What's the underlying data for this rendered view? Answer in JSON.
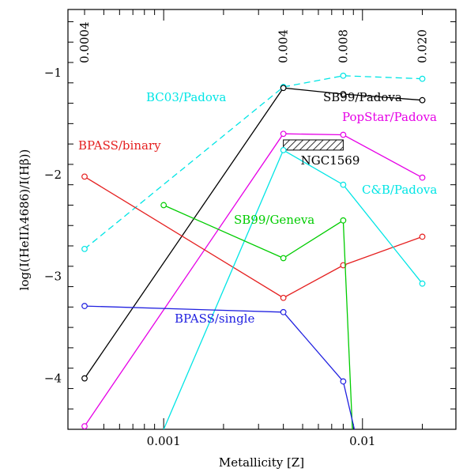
{
  "chart_data": {
    "type": "line",
    "xlabel": "Metallicity [Z]",
    "ylabel": "log(I(HeIIλ4686)/I(Hβ))",
    "x_scale": "log",
    "xlim": [
      0.00033,
      0.0295
    ],
    "ylim": [
      -4.5,
      -0.38
    ],
    "x_ticks": [
      {
        "value": 0.001,
        "label": "0.001"
      },
      {
        "value": 0.01,
        "label": "0.01"
      }
    ],
    "y_ticks": [
      {
        "value": -1,
        "label": "−1"
      },
      {
        "value": -2,
        "label": "−2"
      },
      {
        "value": -3,
        "label": "−3"
      },
      {
        "value": -4,
        "label": "−4"
      }
    ],
    "top_labels": [
      {
        "value": 0.0004,
        "label": "0.0004"
      },
      {
        "value": 0.004,
        "label": "0.004"
      },
      {
        "value": 0.008,
        "label": "0.008"
      },
      {
        "value": 0.02,
        "label": "0.020"
      }
    ],
    "series": [
      {
        "name": "BC03/Padova",
        "color": "#00e5e5",
        "dashed": true,
        "markers": true,
        "x": [
          0.0004,
          0.004,
          0.008,
          0.02
        ],
        "y": [
          -2.73,
          -1.14,
          -1.03,
          -1.06
        ]
      },
      {
        "name": "SB99/Padova",
        "color": "#000000",
        "dashed": false,
        "markers": true,
        "x": [
          0.0004,
          0.004,
          0.008,
          0.02
        ],
        "y": [
          -4.0,
          -1.15,
          -1.21,
          -1.27
        ]
      },
      {
        "name": "PopStar/Padova",
        "color": "#e600e6",
        "dashed": false,
        "markers": true,
        "x": [
          0.0004,
          0.004,
          0.008,
          0.02
        ],
        "y": [
          -4.47,
          -1.6,
          -1.61,
          -2.03
        ]
      },
      {
        "name": "BPASS/binary",
        "color": "#e52020",
        "dashed": false,
        "markers": true,
        "x": [
          0.0004,
          0.004,
          0.008,
          0.02
        ],
        "y": [
          -2.02,
          -3.21,
          -2.89,
          -2.61
        ]
      },
      {
        "name": "C&B/Padova",
        "color": "#00e5e5",
        "dashed": false,
        "markers": true,
        "x": [
          0.001,
          0.004,
          0.008,
          0.02
        ],
        "y": [
          -4.5,
          -1.76,
          -2.1,
          -3.07
        ]
      },
      {
        "name": "SB99/Geneva",
        "color": "#00cc00",
        "dashed": false,
        "markers": true,
        "x": [
          0.001,
          0.004,
          0.008,
          0.0089
        ],
        "y": [
          -2.3,
          -2.82,
          -2.45,
          -4.5
        ]
      },
      {
        "name": "BPASS/single",
        "color": "#2020e0",
        "dashed": false,
        "markers": true,
        "x": [
          0.0004,
          0.004,
          0.008,
          0.0091
        ],
        "y": [
          -3.29,
          -3.35,
          -4.03,
          -4.5
        ]
      }
    ],
    "shaded_region": {
      "label": "NGC1569",
      "x": [
        0.004,
        0.008
      ],
      "y": [
        -1.76,
        -1.66
      ]
    }
  }
}
